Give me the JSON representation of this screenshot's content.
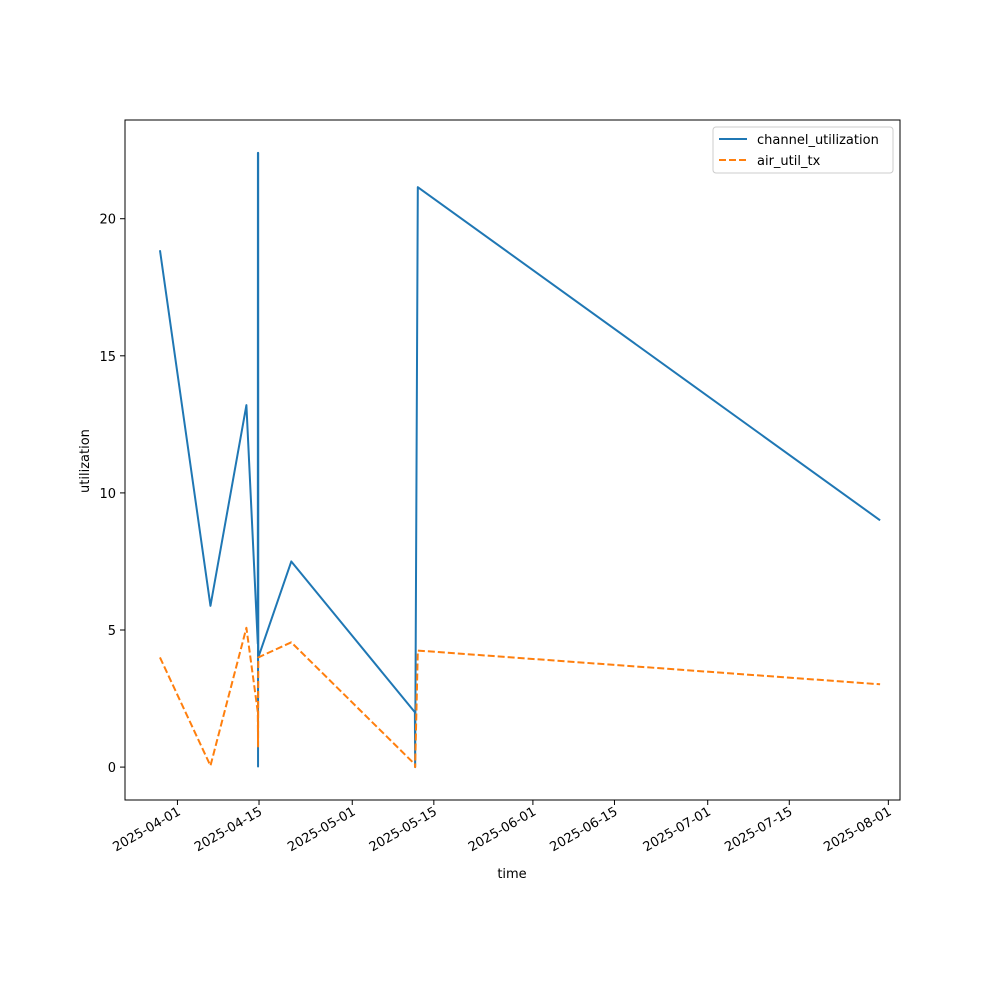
{
  "chart_data": {
    "type": "line",
    "title": "",
    "xlabel": "time",
    "ylabel": "utilization",
    "xlim": [
      "2025-03-23",
      "2025-08-03"
    ],
    "ylim": [
      -1.2,
      23.6
    ],
    "x_ticks": [
      "2025-04-01",
      "2025-04-15",
      "2025-05-01",
      "2025-05-15",
      "2025-06-01",
      "2025-06-15",
      "2025-07-01",
      "2025-07-15",
      "2025-08-01"
    ],
    "y_ticks": [
      0,
      5,
      10,
      15,
      20
    ],
    "grid": false,
    "legend": "top-right",
    "series": [
      {
        "name": "channel_utilization",
        "color": "#1f77b4",
        "dash": "solid",
        "points": [
          [
            "2025-03-29T00:00",
            18.85
          ],
          [
            "2025-04-06T16:00",
            5.88
          ],
          [
            "2025-04-12T20:00",
            13.2
          ],
          [
            "2025-04-14T19:00",
            4.5
          ],
          [
            "2025-04-14T19:30",
            22.4
          ],
          [
            "2025-04-14T20:00",
            0.02
          ],
          [
            "2025-04-14T20:30",
            22.4
          ],
          [
            "2025-04-14T21:00",
            4.0
          ],
          [
            "2025-04-20T13:00",
            7.5
          ],
          [
            "2025-05-11T18:00",
            2.0
          ],
          [
            "2025-05-11T19:00",
            0.0
          ],
          [
            "2025-05-12T06:00",
            21.15
          ],
          [
            "2025-07-30T14:00",
            9.0
          ]
        ]
      },
      {
        "name": "air_util_tx",
        "color": "#ff7f0e",
        "dash": "dashed",
        "points": [
          [
            "2025-03-29T00:00",
            4.0
          ],
          [
            "2025-04-06T16:00",
            0.05
          ],
          [
            "2025-04-12T20:00",
            5.08
          ],
          [
            "2025-04-14T19:00",
            2.0
          ],
          [
            "2025-04-14T20:00",
            0.75
          ],
          [
            "2025-04-14T21:00",
            4.0
          ],
          [
            "2025-04-20T13:00",
            4.55
          ],
          [
            "2025-05-11T18:00",
            0.1
          ],
          [
            "2025-05-11T19:00",
            0.0
          ],
          [
            "2025-05-12T06:00",
            4.25
          ],
          [
            "2025-07-30T14:00",
            3.02
          ]
        ]
      }
    ]
  }
}
